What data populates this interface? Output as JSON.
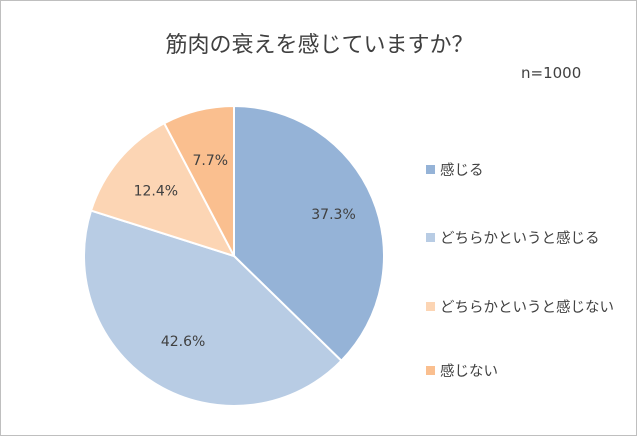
{
  "chart_data": {
    "type": "pie",
    "title": "筋肉の衰えを感じていますか？",
    "annotation": "n=1000",
    "categories": [
      "感じる",
      "どちらかというと感じる",
      "どちらかというと感じない",
      "感じない"
    ],
    "values": [
      37.3,
      42.6,
      12.4,
      7.7
    ],
    "data_labels": [
      "37.3%",
      "42.6%",
      "12.4%",
      "7.7%"
    ],
    "colors": [
      "#95b3d7",
      "#b8cce4",
      "#fcd5b4",
      "#fabf8f"
    ],
    "legend_position": "right",
    "start_angle_deg": 0,
    "direction": "clockwise"
  }
}
